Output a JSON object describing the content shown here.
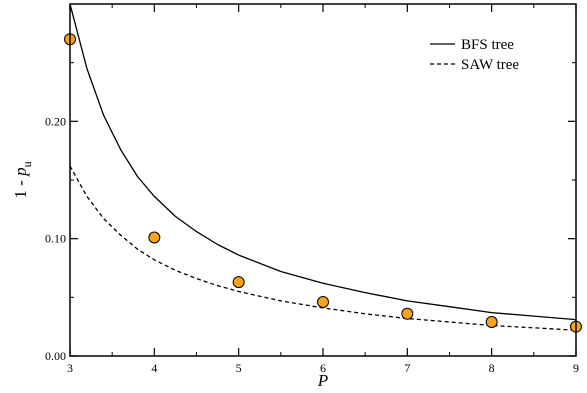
{
  "chart_data": {
    "type": "line",
    "title": "",
    "xlabel": "P",
    "ylabel_main": "1 - ",
    "ylabel_var": "p",
    "ylabel_sub": "u",
    "xlim": [
      3,
      9
    ],
    "ylim": [
      0,
      0.3
    ],
    "x_ticks": [
      3,
      4,
      5,
      6,
      7,
      8,
      9
    ],
    "x_tick_labels": [
      "3",
      "4",
      "5",
      "6",
      "7",
      "8",
      "9"
    ],
    "y_ticks": [
      0,
      0.1,
      0.2
    ],
    "y_tick_labels": [
      "0.00",
      "0.10",
      "0.20"
    ],
    "grid": false,
    "legend_position": "top-right",
    "series": [
      {
        "name": "BFS tree",
        "style": "solid",
        "color": "#000000",
        "x": [
          3.0,
          3.2,
          3.4,
          3.6,
          3.8,
          4.0,
          4.25,
          4.5,
          4.75,
          5.0,
          5.5,
          6.0,
          6.5,
          7.0,
          7.5,
          8.0,
          8.5,
          9.0
        ],
        "y": [
          0.3,
          0.245,
          0.205,
          0.176,
          0.153,
          0.136,
          0.119,
          0.106,
          0.095,
          0.086,
          0.072,
          0.062,
          0.054,
          0.047,
          0.042,
          0.037,
          0.034,
          0.031
        ]
      },
      {
        "name": "SAW tree",
        "style": "dashed",
        "color": "#000000",
        "x": [
          3.0,
          3.2,
          3.4,
          3.6,
          3.8,
          4.0,
          4.25,
          4.5,
          4.75,
          5.0,
          5.5,
          6.0,
          6.5,
          7.0,
          7.5,
          8.0,
          8.5,
          9.0
        ],
        "y": [
          0.162,
          0.136,
          0.117,
          0.103,
          0.091,
          0.082,
          0.073,
          0.066,
          0.06,
          0.055,
          0.047,
          0.041,
          0.036,
          0.032,
          0.029,
          0.026,
          0.024,
          0.022
        ]
      },
      {
        "name": "",
        "style": "markers",
        "color": "#f5a41c",
        "x": [
          3,
          4,
          5,
          6,
          7,
          8,
          9
        ],
        "y": [
          0.27,
          0.101,
          0.063,
          0.046,
          0.036,
          0.029,
          0.025
        ]
      }
    ]
  }
}
